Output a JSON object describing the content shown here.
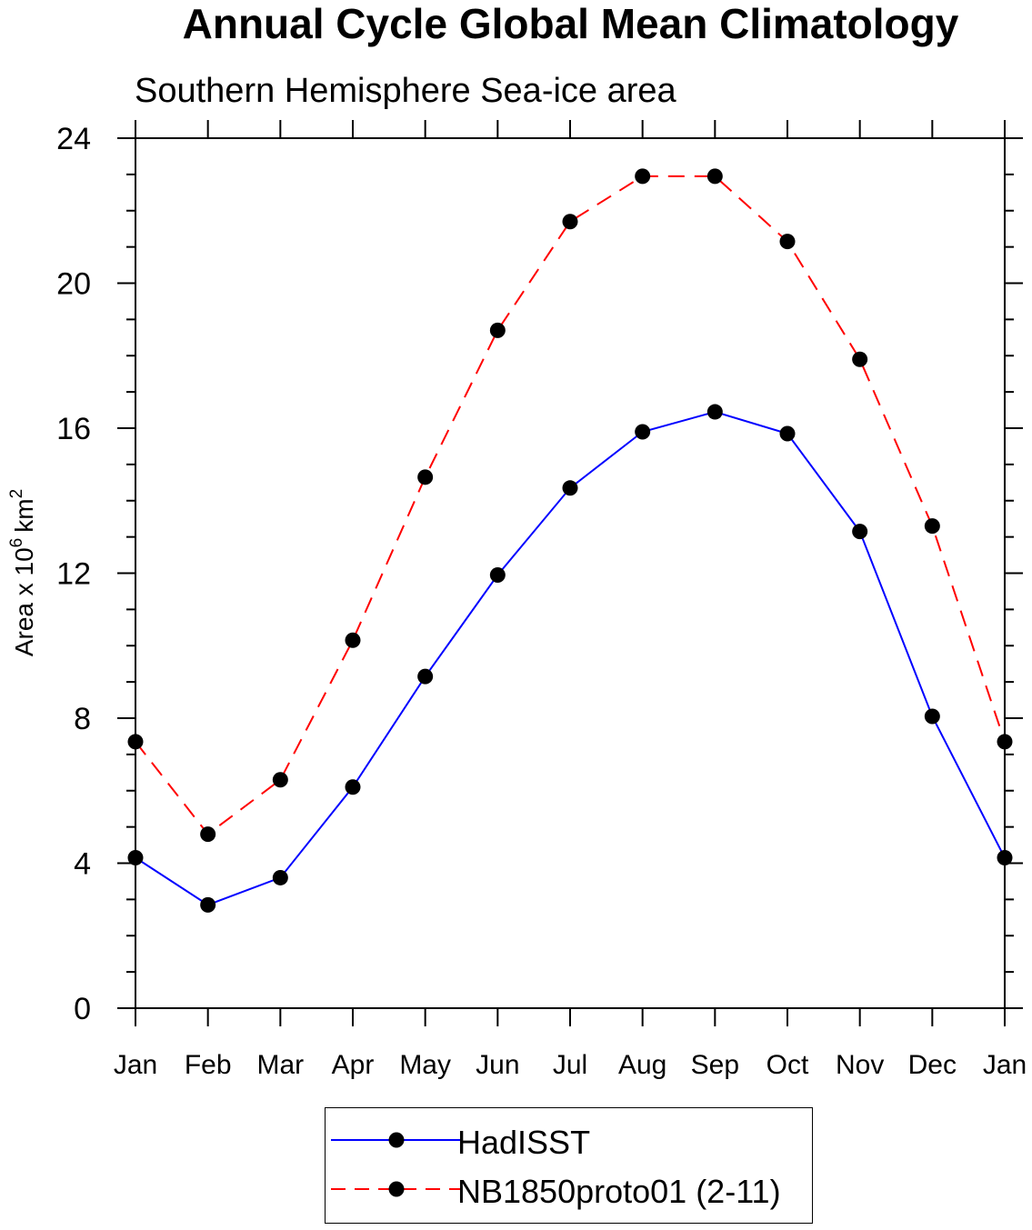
{
  "chart_data": {
    "type": "line",
    "title": "Annual Cycle Global Mean Climatology",
    "subtitle": "Southern Hemisphere Sea-ice area",
    "xlabel": "",
    "ylabel": "Area x 10",
    "ylabel_superscript": "6",
    "ylabel_unit": "km",
    "ylabel_unit_superscript": "2",
    "categories": [
      "Jan",
      "Feb",
      "Mar",
      "Apr",
      "May",
      "Jun",
      "Jul",
      "Aug",
      "Sep",
      "Oct",
      "Nov",
      "Dec",
      "Jan"
    ],
    "ylim": [
      0,
      24
    ],
    "yticks": [
      0,
      4,
      8,
      12,
      16,
      20,
      24
    ],
    "grid": false,
    "legend_position": "bottom-center",
    "series": [
      {
        "name": "HadISST",
        "color": "#0000ff",
        "dash": "solid",
        "values": [
          4.15,
          2.85,
          3.6,
          6.1,
          9.15,
          11.95,
          14.35,
          15.9,
          16.45,
          15.85,
          13.15,
          8.05,
          4.15
        ]
      },
      {
        "name": "NB1850proto01 (2-11)",
        "color": "#ff0000",
        "dash": "dashed",
        "values": [
          7.35,
          4.8,
          6.3,
          10.15,
          14.65,
          18.7,
          21.7,
          22.95,
          22.95,
          21.15,
          17.9,
          13.3,
          7.35
        ]
      }
    ]
  }
}
